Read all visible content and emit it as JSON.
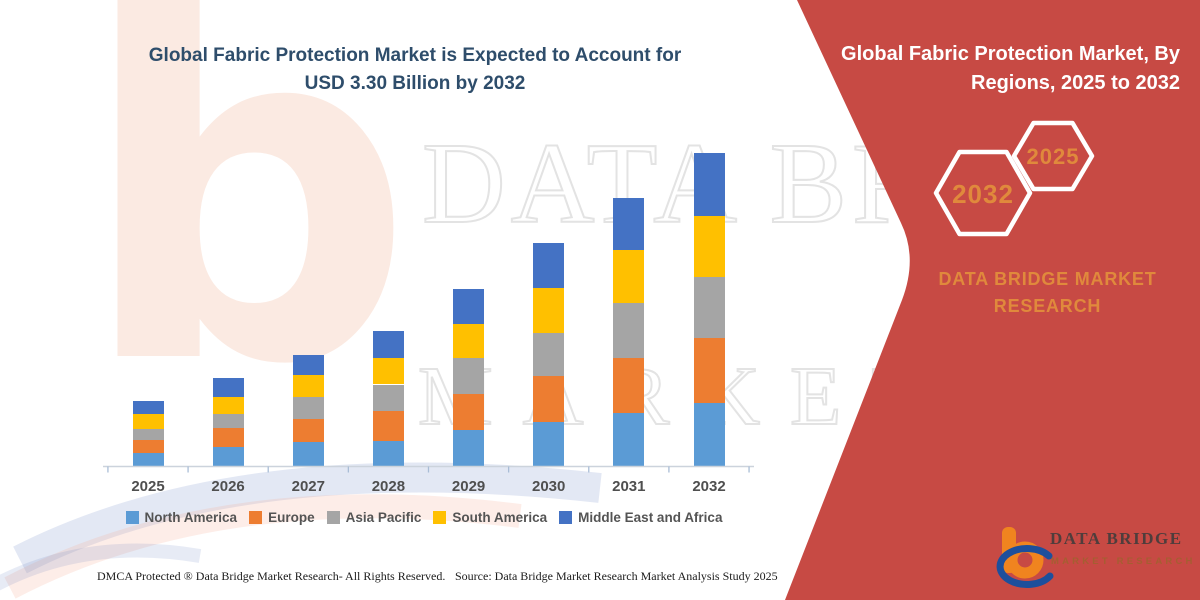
{
  "title": {
    "line1": "Global Fabric Protection Market is Expected to Account for",
    "line2": "USD 3.30 Billion by 2032",
    "color": "#2e4d6b"
  },
  "banner": {
    "title_line1": "Global Fabric Protection Market, By",
    "title_line2": "Regions, 2025 to 2032",
    "hex_left_year": "2032",
    "hex_right_year": "2025",
    "brand_line1": "DATA BRIDGE MARKET",
    "brand_line2": "RESEARCH",
    "bg_color": "#c74a44",
    "accent_text_color": "#e0893c"
  },
  "logo": {
    "wordmark": "DATA BRIDGE",
    "subtitle": "MARKET RESEARCH",
    "b_color": "#f0841f",
    "swoosh_color": "#1d4f9c"
  },
  "watermark": {
    "letter": "b",
    "row1": "DATA BRIDGE",
    "row2": "MARKET RESEARCH"
  },
  "footer": {
    "left": "DMCA Protected ® Data Bridge Market Research-  All Rights Reserved.",
    "right": "Source: Data Bridge Market Research  Market Analysis Study 2025"
  },
  "chart_data": {
    "type": "bar",
    "stacked": true,
    "unit": "USD Billion",
    "title": "Global Fabric Protection Market is Expected to Account for USD 3.30 Billion by 2032",
    "xlabel": "",
    "ylabel": "",
    "ylim": [
      0,
      3.5
    ],
    "grid": false,
    "legend_position": "bottom",
    "categories": [
      "2025",
      "2026",
      "2027",
      "2028",
      "2029",
      "2030",
      "2031",
      "2032"
    ],
    "series": [
      {
        "name": "North America",
        "color": "#5b9bd5",
        "values": [
          0.14,
          0.2,
          0.25,
          0.26,
          0.38,
          0.46,
          0.56,
          0.67
        ]
      },
      {
        "name": "Europe",
        "color": "#ed7d31",
        "values": [
          0.13,
          0.2,
          0.25,
          0.32,
          0.38,
          0.49,
          0.58,
          0.68
        ]
      },
      {
        "name": "Asia Pacific",
        "color": "#a5a5a5",
        "values": [
          0.12,
          0.15,
          0.23,
          0.28,
          0.38,
          0.45,
          0.58,
          0.64
        ]
      },
      {
        "name": "South America",
        "color": "#ffc000",
        "values": [
          0.16,
          0.18,
          0.23,
          0.28,
          0.36,
          0.48,
          0.56,
          0.65
        ]
      },
      {
        "name": "Middle East and Africa",
        "color": "#4472c4",
        "values": [
          0.14,
          0.2,
          0.21,
          0.28,
          0.37,
          0.47,
          0.55,
          0.66
        ]
      }
    ],
    "totals": [
      0.69,
      0.93,
      1.17,
      1.42,
      1.87,
      2.35,
      2.83,
      3.3
    ]
  }
}
